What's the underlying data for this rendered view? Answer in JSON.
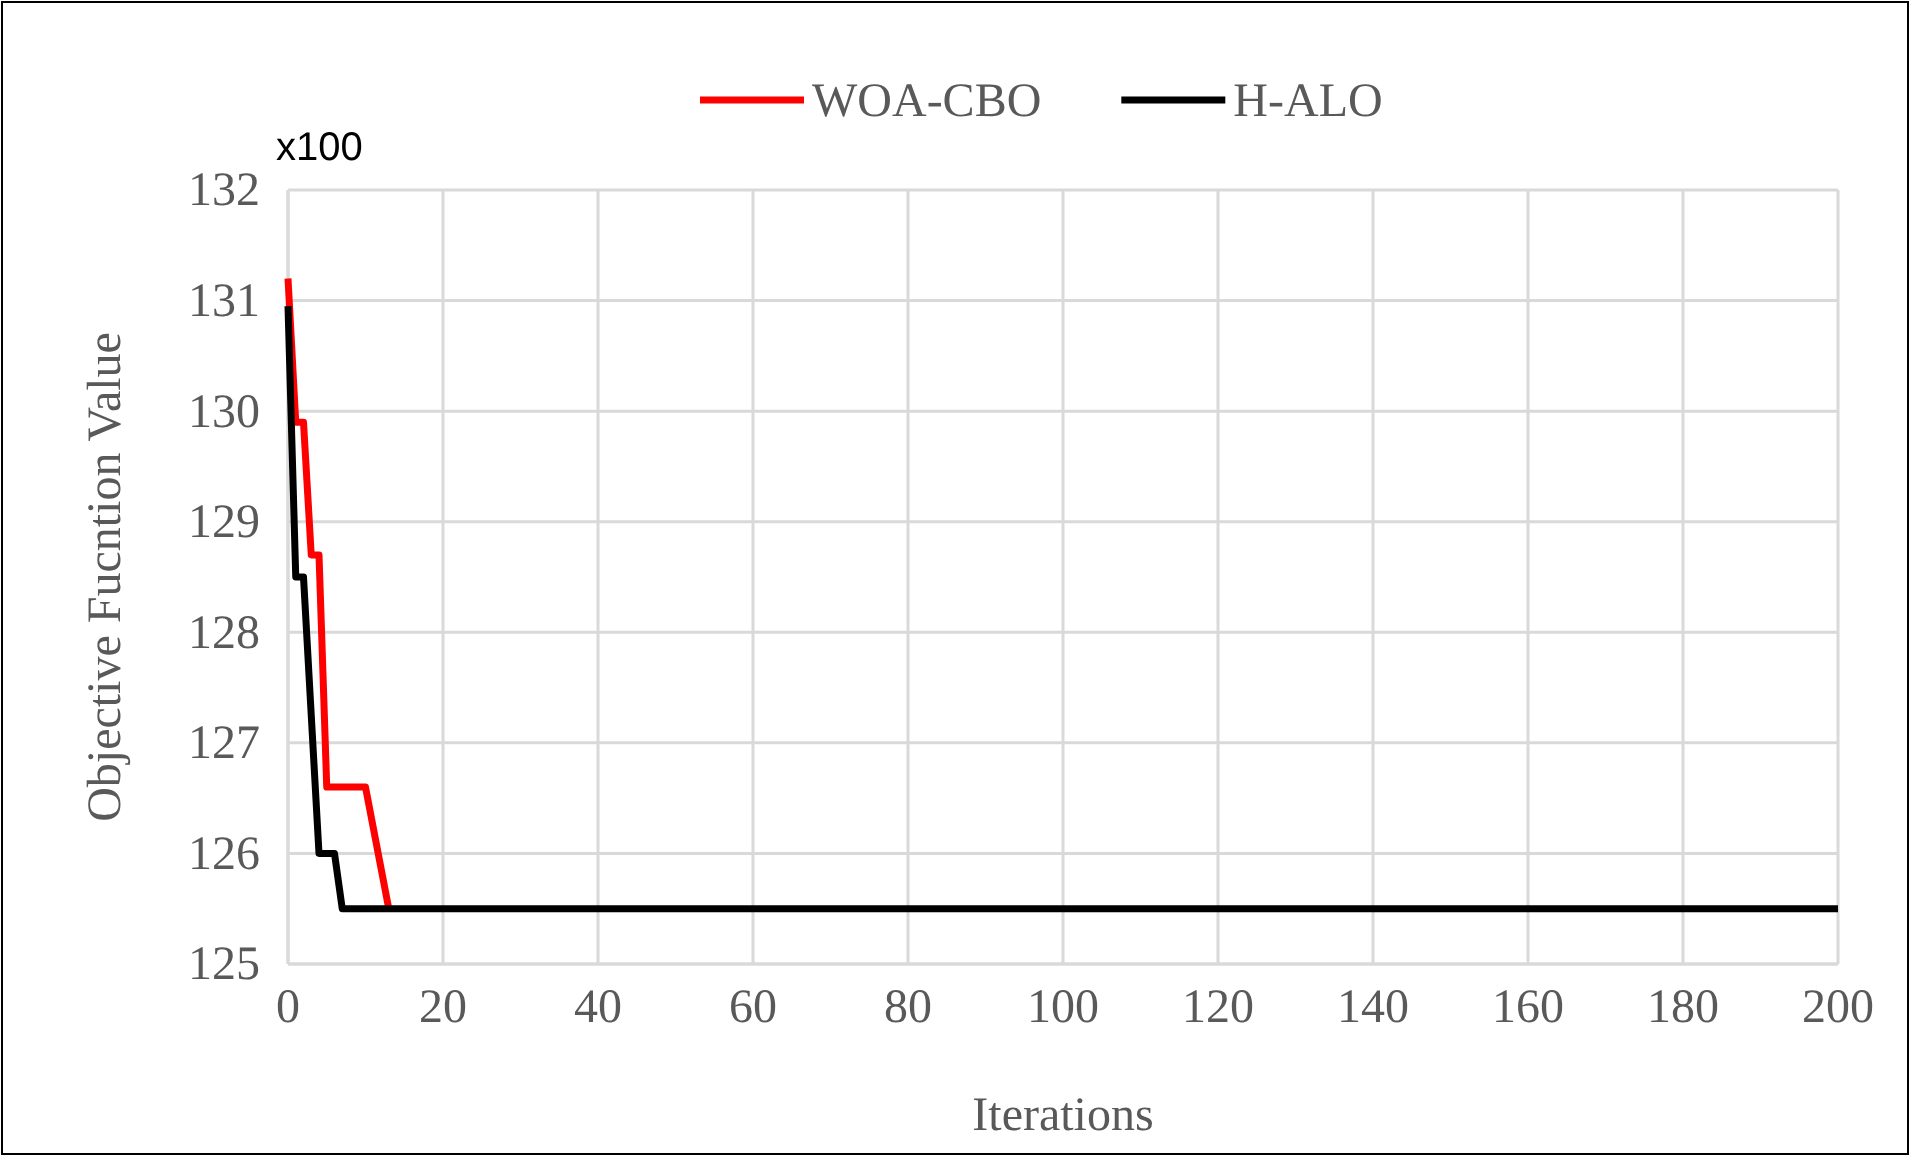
{
  "chart_data": {
    "type": "line",
    "xlabel": "Iterations",
    "ylabel": "Objective Fucntion Value",
    "annotations": [
      "x100"
    ],
    "xlim": [
      0,
      200
    ],
    "xticks": [
      0,
      20,
      40,
      60,
      80,
      100,
      120,
      140,
      160,
      180,
      200
    ],
    "ylim": [
      125,
      132
    ],
    "yticks": [
      125,
      126,
      127,
      128,
      129,
      130,
      131,
      132
    ],
    "grid": true,
    "legend": "top",
    "line_style": "solid",
    "marker": "none",
    "series": [
      {
        "name": "WOA-CBO",
        "color": "#ff0000",
        "x": [
          0,
          1,
          2,
          3,
          4,
          5,
          10,
          13
        ],
        "values": [
          131.2,
          129.9,
          129.9,
          128.7,
          128.7,
          126.6,
          126.6,
          125.5
        ]
      },
      {
        "name": "H-ALO",
        "color": "#000000",
        "x": [
          0,
          1,
          2,
          4,
          6,
          7,
          200
        ],
        "values": [
          130.95,
          128.5,
          128.5,
          126.0,
          126.0,
          125.5,
          125.5
        ]
      }
    ]
  }
}
